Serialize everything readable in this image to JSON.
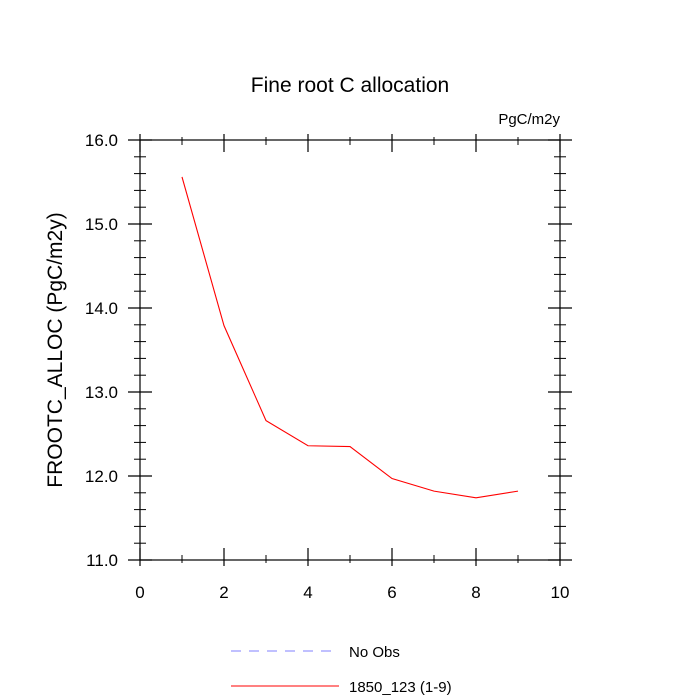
{
  "chart_data": {
    "type": "line",
    "title": "Fine root C allocation",
    "units_label": "PgC/m2y",
    "xlabel": "",
    "ylabel": "FROOTC_ALLOC  (PgC/m2y)",
    "xlim": [
      0,
      10
    ],
    "ylim": [
      11.0,
      16.0
    ],
    "xticks": [
      0,
      2,
      4,
      6,
      8,
      10
    ],
    "xtick_labels": [
      "0",
      "2",
      "4",
      "6",
      "8",
      "10"
    ],
    "yticks": [
      11.0,
      12.0,
      13.0,
      14.0,
      15.0,
      16.0
    ],
    "ytick_labels": [
      "11.0",
      "12.0",
      "13.0",
      "14.0",
      "15.0",
      "16.0"
    ],
    "series": [
      {
        "name": "1850_123 (1-9)",
        "color": "#ff0000",
        "x": [
          1,
          2,
          3,
          4,
          5,
          6,
          7,
          8,
          9
        ],
        "values": [
          15.56,
          13.79,
          12.66,
          12.36,
          12.35,
          11.97,
          11.82,
          11.74,
          11.82
        ]
      }
    ],
    "legend": [
      {
        "label": "No Obs",
        "color": "#8080ff",
        "style": "dashed"
      },
      {
        "label": "1850_123 (1-9)",
        "color": "#ff0000",
        "style": "solid"
      }
    ],
    "legend_position": "bottom"
  }
}
